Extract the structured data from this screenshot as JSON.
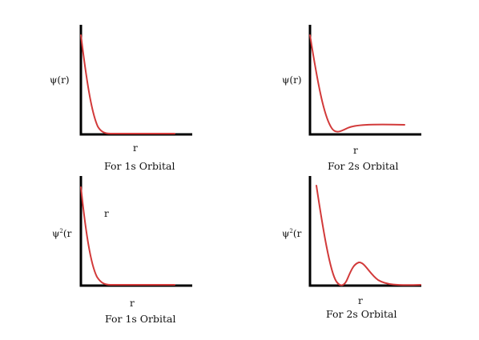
{
  "chart_data": [
    {
      "type": "line",
      "title": "For 1s Orbital",
      "xlabel": "r",
      "ylabel": "ψ(r)",
      "ylabel_superscript": "",
      "annotation": "",
      "curve_shape": "exponential-decay",
      "color": "#d23a3a",
      "grid": false
    },
    {
      "type": "line",
      "title": "For 2s Orbital",
      "xlabel": "r",
      "ylabel": "ψ(r)",
      "ylabel_superscript": "",
      "annotation": "",
      "curve_shape": "decay-with-node-then-plateau",
      "color": "#d23a3a",
      "grid": false
    },
    {
      "type": "line",
      "title": "For 1s Orbital",
      "xlabel": "r",
      "ylabel": "ψ(r",
      "ylabel_superscript": "2",
      "annotation": "r",
      "curve_shape": "exponential-decay",
      "color": "#d23a3a",
      "grid": false
    },
    {
      "type": "line",
      "title": "For 2s Orbital",
      "xlabel": "r",
      "ylabel": "ψ(r",
      "ylabel_superscript": "2",
      "annotation": "",
      "curve_shape": "decay-node-hump",
      "color": "#d23a3a",
      "grid": false
    }
  ]
}
